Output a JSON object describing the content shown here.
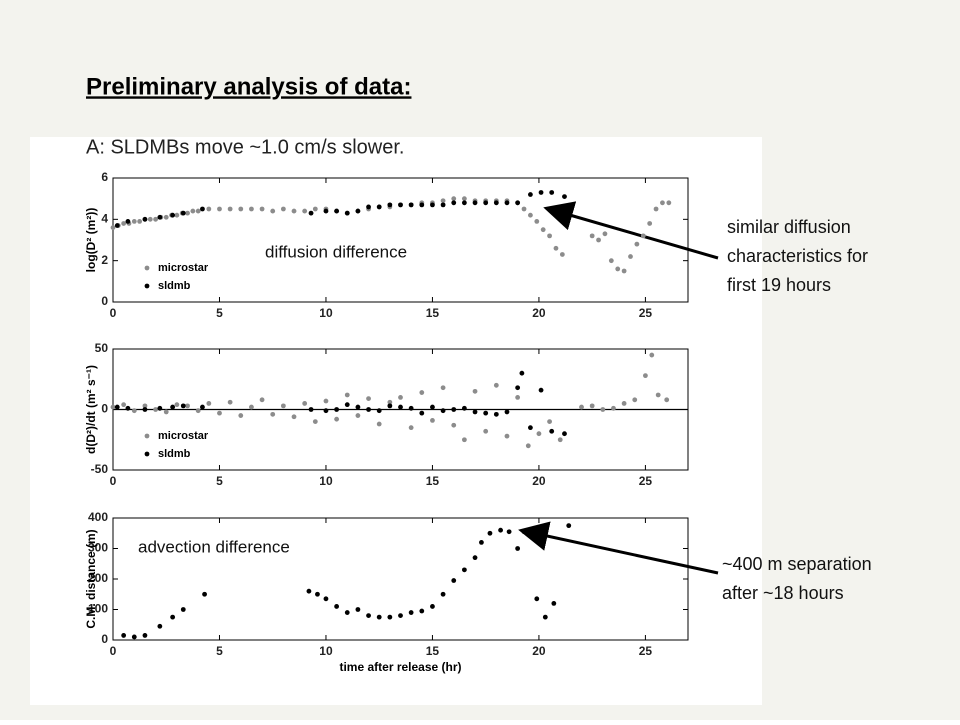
{
  "slide": {
    "title": "Preliminary analysis of data:",
    "subtitle": "A: SLDMBs move ~1.0 cm/s slower.",
    "callouts": [
      {
        "lines": [
          "similar diffusion",
          "characteristics for",
          "first 19 hours"
        ]
      },
      {
        "lines": [
          "~400 m separation",
          "after ~18 hours"
        ]
      }
    ]
  },
  "chart_data": [
    {
      "type": "scatter",
      "ylabel": "log(D² (m²))",
      "annotation": "diffusion difference",
      "legend": "lower left",
      "xlim": [
        0,
        27
      ],
      "ylim": [
        0,
        6
      ],
      "xticks": [
        0,
        5,
        10,
        15,
        20,
        25
      ],
      "yticks": [
        0,
        2,
        4,
        6
      ],
      "series": [
        {
          "name": "microstar",
          "color": "#8c8c8c",
          "x": [
            0,
            0.25,
            0.5,
            0.75,
            1,
            1.25,
            1.5,
            1.75,
            2,
            2.25,
            2.5,
            2.75,
            3,
            3.25,
            3.5,
            3.75,
            4,
            4.5,
            5,
            5.5,
            6,
            6.5,
            7,
            7.5,
            8,
            8.5,
            9,
            9.5,
            10,
            10.5,
            11,
            11.5,
            12,
            12.5,
            13,
            13.5,
            14,
            14.5,
            15,
            15.5,
            16,
            16.5,
            17,
            17.5,
            18,
            18.5,
            19,
            19.3,
            19.6,
            19.9,
            20.2,
            20.5,
            20.8,
            21.1,
            22.5,
            22.8,
            23.1,
            23.4,
            23.7,
            24,
            24.3,
            24.6,
            24.9,
            25.2,
            25.5,
            25.8,
            26.1
          ],
          "values": [
            3.6,
            3.7,
            3.8,
            3.8,
            3.9,
            3.9,
            4.0,
            4.0,
            4.0,
            4.1,
            4.1,
            4.2,
            4.2,
            4.3,
            4.3,
            4.4,
            4.4,
            4.5,
            4.5,
            4.5,
            4.5,
            4.5,
            4.5,
            4.4,
            4.5,
            4.4,
            4.4,
            4.5,
            4.5,
            4.4,
            4.3,
            4.4,
            4.5,
            4.6,
            4.6,
            4.7,
            4.7,
            4.8,
            4.8,
            4.9,
            5.0,
            5.0,
            4.9,
            4.9,
            4.9,
            4.9,
            4.8,
            4.5,
            4.2,
            3.9,
            3.5,
            3.2,
            2.6,
            2.3,
            3.2,
            3.0,
            3.3,
            2.0,
            1.6,
            1.5,
            2.2,
            2.8,
            3.2,
            3.8,
            4.5,
            4.8,
            4.8
          ]
        },
        {
          "name": "sldmb",
          "color": "#000000",
          "x": [
            0.2,
            0.7,
            1.5,
            2.2,
            2.8,
            3.3,
            4.2,
            9.3,
            10,
            10.5,
            11,
            11.5,
            12,
            12.5,
            13,
            13.5,
            14,
            14.5,
            15,
            15.5,
            16,
            16.5,
            17,
            17.5,
            18,
            18.5,
            19,
            19.6,
            20.1,
            20.6,
            21.2
          ],
          "values": [
            3.7,
            3.9,
            4.0,
            4.1,
            4.2,
            4.3,
            4.5,
            4.3,
            4.4,
            4.4,
            4.3,
            4.4,
            4.6,
            4.6,
            4.7,
            4.7,
            4.7,
            4.7,
            4.7,
            4.7,
            4.8,
            4.8,
            4.8,
            4.8,
            4.8,
            4.8,
            4.8,
            5.2,
            5.3,
            5.3,
            5.1
          ]
        }
      ]
    },
    {
      "type": "scatter",
      "ylabel": "d(D²)/dt (m² s⁻¹)",
      "legend": "lower left",
      "zero_line": true,
      "xlim": [
        0,
        27
      ],
      "ylim": [
        -50,
        50
      ],
      "xticks": [
        0,
        5,
        10,
        15,
        20,
        25
      ],
      "yticks": [
        -50,
        0,
        50
      ],
      "series": [
        {
          "name": "microstar",
          "color": "#8c8c8c",
          "x": [
            0,
            0.5,
            1,
            1.5,
            2,
            2.5,
            3,
            3.5,
            4,
            4.5,
            5,
            5.5,
            6,
            6.5,
            7,
            7.5,
            8,
            8.5,
            9,
            9.5,
            10,
            10.5,
            11,
            11.5,
            12,
            12.5,
            13,
            13.5,
            14,
            14.5,
            15,
            15.5,
            16,
            16.5,
            17,
            17.5,
            18,
            18.5,
            19,
            19.5,
            20,
            20.5,
            21,
            22,
            22.5,
            23,
            23.5,
            24,
            24.5,
            25,
            25.3,
            25.6,
            26
          ],
          "values": [
            2,
            4,
            -1,
            3,
            0,
            -2,
            4,
            3,
            -1,
            5,
            -3,
            6,
            -5,
            2,
            8,
            -4,
            3,
            -6,
            5,
            -10,
            7,
            -8,
            12,
            -5,
            9,
            -12,
            6,
            10,
            -15,
            14,
            -9,
            18,
            -13,
            -25,
            15,
            -18,
            20,
            -22,
            10,
            -30,
            -20,
            -10,
            -25,
            2,
            3,
            0,
            1,
            5,
            8,
            28,
            45,
            12,
            8
          ]
        },
        {
          "name": "sldmb",
          "color": "#000000",
          "x": [
            0.2,
            0.7,
            1.5,
            2.2,
            2.8,
            3.3,
            4.2,
            9.3,
            10,
            10.5,
            11,
            11.5,
            12,
            12.5,
            13,
            13.5,
            14,
            14.5,
            15,
            15.5,
            16,
            16.5,
            17,
            17.5,
            18,
            18.5,
            19,
            19.2,
            19.6,
            20.1,
            20.6,
            21.2
          ],
          "values": [
            2,
            1,
            0,
            1,
            2,
            3,
            2,
            0,
            -1,
            0,
            4,
            2,
            0,
            -1,
            3,
            2,
            1,
            -3,
            2,
            -1,
            0,
            1,
            -2,
            -3,
            -4,
            -2,
            18,
            30,
            -15,
            16,
            -18,
            -20
          ]
        }
      ]
    },
    {
      "type": "scatter",
      "ylabel": "C.M. distance (m)",
      "xlabel": "time after release (hr)",
      "annotation": "advection difference",
      "xlim": [
        0,
        27
      ],
      "ylim": [
        0,
        400
      ],
      "xticks": [
        0,
        5,
        10,
        15,
        20,
        25
      ],
      "yticks": [
        0,
        100,
        200,
        300,
        400
      ],
      "series": [
        {
          "color": "#000000",
          "x": [
            0.5,
            1,
            1.5,
            2.2,
            2.8,
            3.3,
            4.3,
            9.2,
            9.6,
            10,
            10.5,
            11,
            11.5,
            12,
            12.5,
            13,
            13.5,
            14,
            14.5,
            15,
            15.5,
            16,
            16.5,
            17,
            17.3,
            17.7,
            18.2,
            18.6,
            19,
            19.3,
            19.9,
            20.3,
            20.7,
            21.4
          ],
          "values": [
            15,
            10,
            15,
            45,
            75,
            100,
            150,
            160,
            150,
            135,
            110,
            90,
            100,
            80,
            75,
            75,
            80,
            90,
            95,
            110,
            150,
            195,
            230,
            270,
            320,
            350,
            360,
            355,
            300,
            355,
            135,
            75,
            120,
            375
          ]
        }
      ]
    }
  ]
}
